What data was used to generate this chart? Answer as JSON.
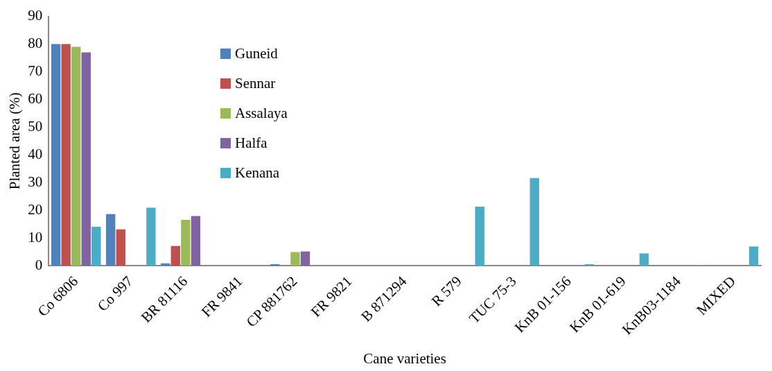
{
  "chart_data": {
    "type": "bar",
    "xlabel": "Cane varieties",
    "ylabel": "Planted area (%)",
    "categories": [
      "Co 6806",
      "Co 997",
      "BR 81116",
      "FR 9841",
      "CP 881762",
      "FR 9821",
      "B 871294",
      "R 579",
      "TUC 75-3",
      "KnB 01-156",
      "KnB 01-619",
      "KnB03-1184",
      "MIXED"
    ],
    "series": [
      {
        "name": "Guneid",
        "color": "#4f81bd",
        "values": [
          80,
          18.6,
          0.8,
          0,
          0.5,
          0,
          0,
          0,
          0,
          0,
          0,
          0,
          0
        ]
      },
      {
        "name": "Sennar",
        "color": "#c0504d",
        "values": [
          80,
          13.1,
          7.1,
          0,
          0,
          0,
          0,
          0,
          0,
          0,
          0,
          0,
          0
        ]
      },
      {
        "name": "Assalaya",
        "color": "#9bbb59",
        "values": [
          79,
          0,
          16.5,
          0,
          4.9,
          0,
          0,
          0,
          0,
          0,
          0,
          0,
          0
        ]
      },
      {
        "name": "Halfa",
        "color": "#8064a2",
        "values": [
          77,
          0,
          17.9,
          0,
          5.1,
          0,
          0,
          0,
          0,
          0,
          0,
          0,
          0
        ]
      },
      {
        "name": "Kenana",
        "color": "#4bacc6",
        "values": [
          14,
          20.9,
          0,
          0,
          0,
          0,
          0,
          21.3,
          31.6,
          0.5,
          4.4,
          0.2,
          6.9
        ]
      }
    ],
    "ylim": [
      0,
      90
    ],
    "yticks": [
      0,
      10,
      20,
      30,
      40,
      50,
      60,
      70,
      80,
      90
    ],
    "grid": false,
    "legend": "top left"
  }
}
